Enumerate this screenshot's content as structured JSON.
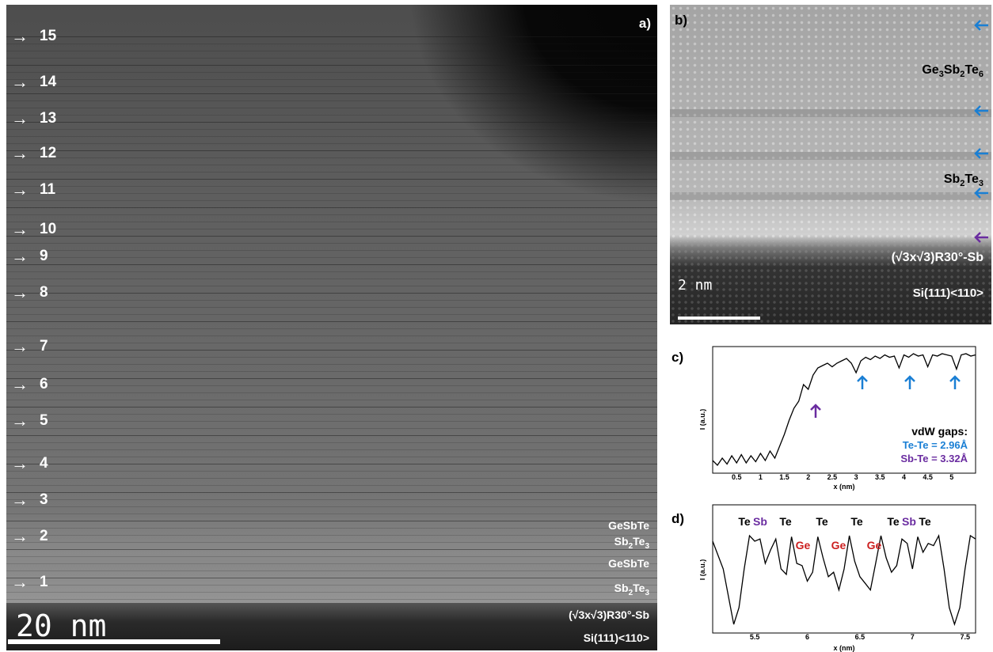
{
  "panel_a": {
    "letter": "a)",
    "layers": [
      "15",
      "14",
      "13",
      "12",
      "11",
      "10",
      "9",
      "8",
      "7",
      "6",
      "5",
      "4",
      "3",
      "2",
      "1"
    ],
    "labels": {
      "l1": "GeSbTe",
      "l2": "Sb2Te3",
      "l3": "GeSbTe",
      "l4": "Sb2Te3",
      "l5": "(√3x√3)R30°-Sb",
      "l6": "Si(111)<110>"
    },
    "scale": "20 nm"
  },
  "panel_b": {
    "letter": "b)",
    "gst": "Ge3Sb2Te6",
    "sbte": "Sb2Te3",
    "recon": "(√3x√3)R30°-Sb",
    "sub": "Si(111)<110>",
    "scale": "2 nm"
  },
  "panel_c": {
    "letter": "c)",
    "ylabel": "I (a.u.)",
    "xlabel": "x (nm)",
    "ticks": [
      "0.5",
      "1",
      "1.5",
      "2",
      "2.5",
      "3",
      "3.5",
      "4",
      "4.5",
      "5"
    ],
    "legend_title": "vdW gaps:",
    "legend_tete": "Te-Te = 2.96Å",
    "legend_sbte": "Sb-Te = 3.32Å"
  },
  "panel_d": {
    "letter": "d)",
    "ylabel": "I (a.u.)",
    "xlabel": "x (nm)",
    "ticks": [
      "5.5",
      "6",
      "6.5",
      "7",
      "7.5"
    ],
    "peaks": [
      "Te",
      "Sb",
      "Te",
      "Te",
      "Te",
      "Te",
      "Sb",
      "Te"
    ],
    "ge": [
      "Ge",
      "Ge",
      "Ge"
    ]
  },
  "colors": {
    "blue": "#1a7fd4",
    "purple": "#6a2ca0",
    "red": "#cc1f1f"
  },
  "chart_data": [
    {
      "type": "line",
      "xlabel": "x (nm)",
      "ylabel": "I (a.u.)",
      "xlim": [
        0,
        5.5
      ],
      "x": [
        0,
        0.1,
        0.2,
        0.3,
        0.4,
        0.5,
        0.6,
        0.7,
        0.8,
        0.9,
        1.0,
        1.1,
        1.2,
        1.3,
        1.4,
        1.5,
        1.6,
        1.7,
        1.8,
        1.9,
        2.0,
        2.1,
        2.2,
        2.3,
        2.4,
        2.5,
        2.6,
        2.7,
        2.8,
        2.9,
        3.0,
        3.1,
        3.2,
        3.3,
        3.4,
        3.5,
        3.6,
        3.7,
        3.8,
        3.9,
        4.0,
        4.1,
        4.2,
        4.3,
        4.4,
        4.5,
        4.6,
        4.7,
        4.8,
        4.9,
        5.0,
        5.1,
        5.2,
        5.3,
        5.4,
        5.5
      ],
      "y": [
        0.08,
        0.04,
        0.1,
        0.05,
        0.12,
        0.06,
        0.13,
        0.06,
        0.12,
        0.07,
        0.14,
        0.08,
        0.16,
        0.1,
        0.2,
        0.3,
        0.42,
        0.52,
        0.58,
        0.72,
        0.68,
        0.8,
        0.86,
        0.88,
        0.9,
        0.87,
        0.9,
        0.92,
        0.94,
        0.9,
        0.82,
        0.92,
        0.95,
        0.93,
        0.96,
        0.94,
        0.97,
        0.95,
        0.96,
        0.86,
        0.97,
        0.95,
        0.98,
        0.96,
        0.97,
        0.87,
        0.97,
        0.96,
        0.98,
        0.97,
        0.96,
        0.85,
        0.97,
        0.98,
        0.96,
        0.97
      ]
    },
    {
      "type": "line",
      "xlabel": "x (nm)",
      "ylabel": "I (a.u.)",
      "xlim": [
        5.1,
        7.6
      ],
      "x": [
        5.1,
        5.2,
        5.3,
        5.35,
        5.4,
        5.45,
        5.5,
        5.55,
        5.6,
        5.65,
        5.7,
        5.75,
        5.8,
        5.85,
        5.9,
        5.95,
        6.0,
        6.05,
        6.1,
        6.15,
        6.2,
        6.25,
        6.3,
        6.35,
        6.4,
        6.45,
        6.5,
        6.55,
        6.6,
        6.65,
        6.7,
        6.75,
        6.8,
        6.85,
        6.9,
        6.95,
        7.0,
        7.05,
        7.1,
        7.15,
        7.2,
        7.25,
        7.3,
        7.35,
        7.4,
        7.45,
        7.5,
        7.55,
        7.6
      ],
      "y": [
        0.8,
        0.55,
        0.05,
        0.2,
        0.55,
        0.85,
        0.8,
        0.82,
        0.6,
        0.72,
        0.82,
        0.55,
        0.5,
        0.84,
        0.6,
        0.58,
        0.44,
        0.52,
        0.84,
        0.65,
        0.48,
        0.52,
        0.36,
        0.55,
        0.85,
        0.62,
        0.48,
        0.42,
        0.36,
        0.6,
        0.85,
        0.65,
        0.52,
        0.58,
        0.82,
        0.78,
        0.55,
        0.84,
        0.7,
        0.78,
        0.76,
        0.85,
        0.55,
        0.2,
        0.05,
        0.2,
        0.55,
        0.85,
        0.82
      ]
    }
  ]
}
